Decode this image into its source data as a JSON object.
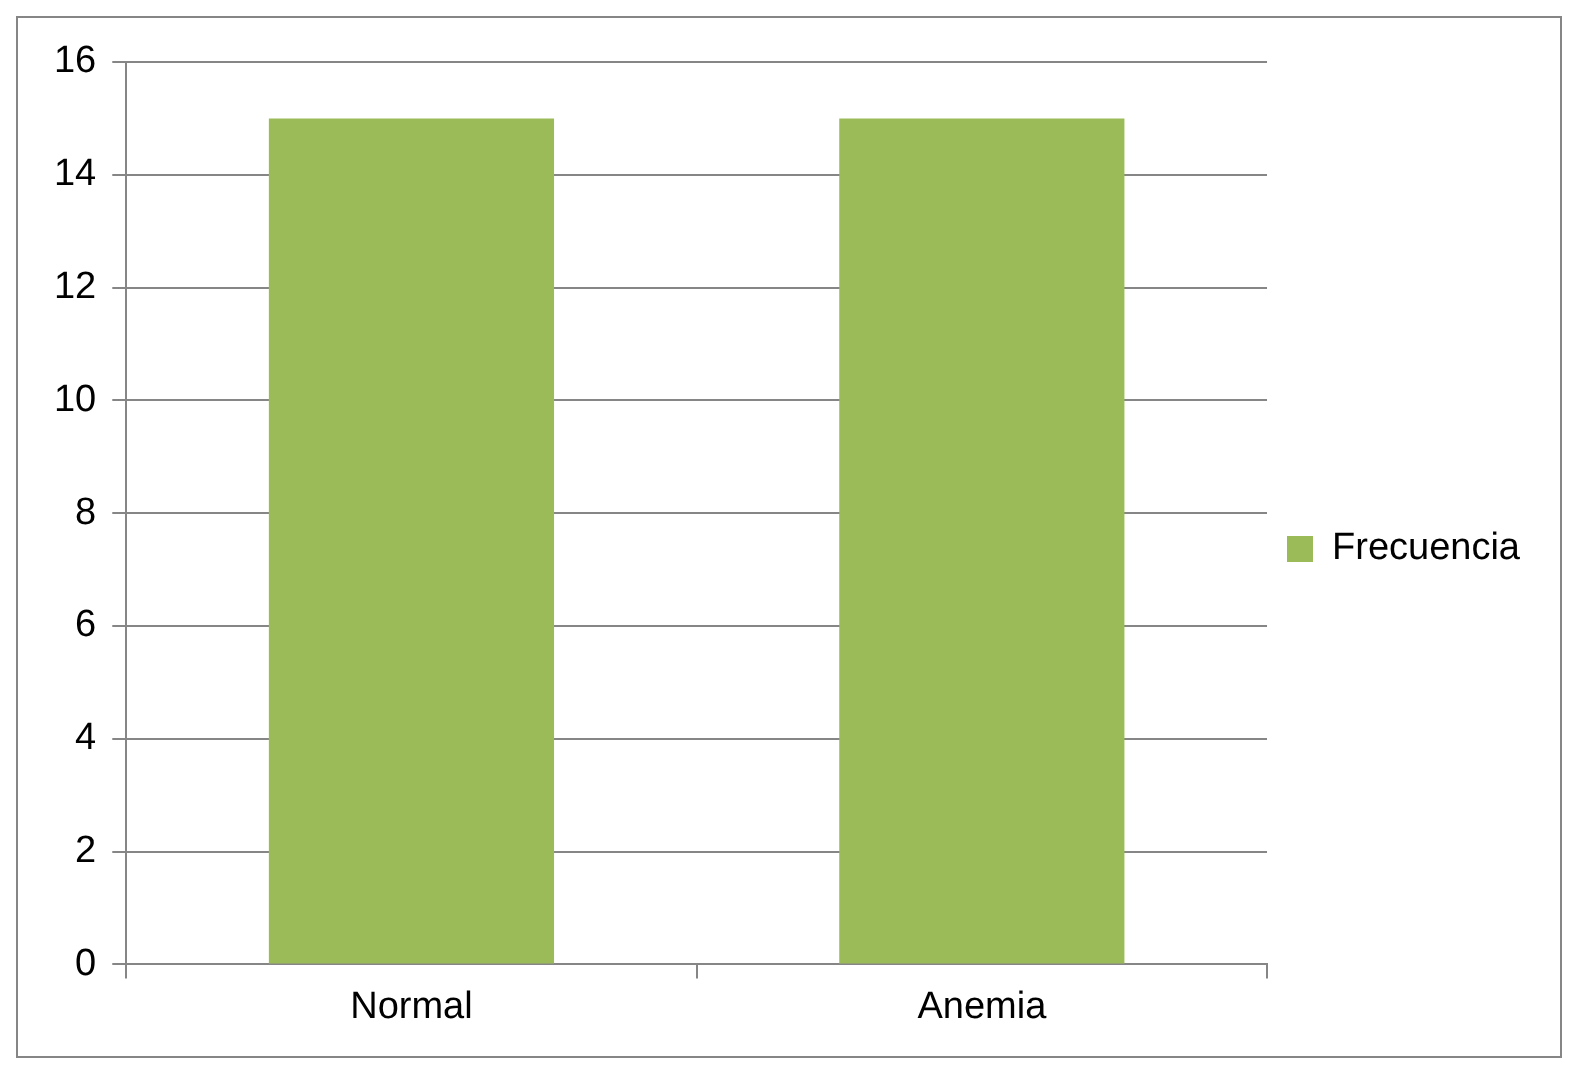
{
  "chart_data": {
    "type": "bar",
    "categories": [
      "Normal",
      "Anemia"
    ],
    "series": [
      {
        "name": "Frecuencia",
        "color": "#9bbb59",
        "values": [
          15,
          15
        ]
      }
    ],
    "ylim": [
      0,
      16
    ],
    "yticks": [
      0,
      2,
      4,
      6,
      8,
      10,
      12,
      14,
      16
    ],
    "grid": "y",
    "legend": "right"
  }
}
